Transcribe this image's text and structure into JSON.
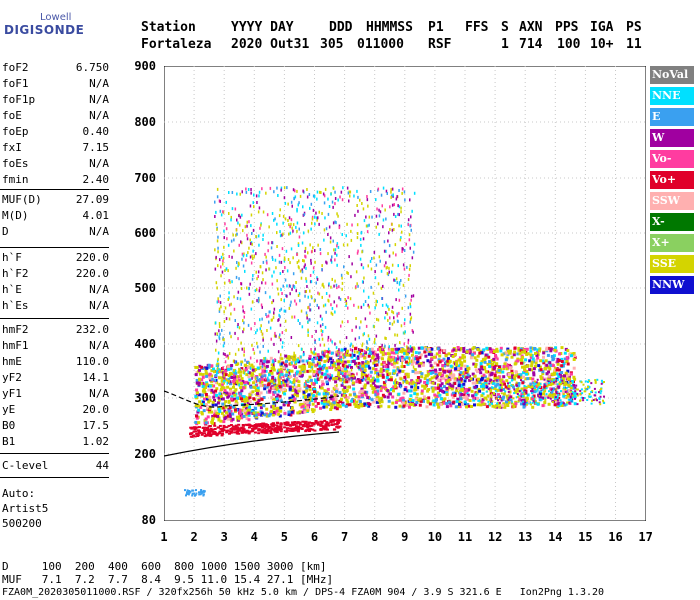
{
  "logo": {
    "top": "Lowell",
    "main": "DIGISONDE"
  },
  "header": {
    "row1": [
      "Station",
      "YYYY DAY",
      "DDD",
      "HHMMSS",
      "P1",
      "FFS",
      "S",
      "AXN",
      "PPS",
      "IGA",
      "PS"
    ],
    "row2": [
      "Fortaleza",
      "2020 Out31",
      "305",
      "011000",
      "RSF",
      "",
      "1",
      "714",
      "100",
      "10+",
      "11"
    ]
  },
  "params": {
    "group1": [
      {
        "label": "foF2",
        "value": "6.750"
      },
      {
        "label": "foF1",
        "value": "N/A"
      },
      {
        "label": "foF1p",
        "value": "N/A"
      },
      {
        "label": "foE",
        "value": "N/A"
      },
      {
        "label": "foEp",
        "value": "0.40"
      },
      {
        "label": "fxI",
        "value": "7.15"
      },
      {
        "label": "foEs",
        "value": "N/A"
      },
      {
        "label": "fmin",
        "value": "2.40"
      }
    ],
    "group2": [
      {
        "label": "MUF(D)",
        "value": "27.09"
      },
      {
        "label": "M(D)",
        "value": "4.01"
      },
      {
        "label": "D",
        "value": "N/A"
      }
    ],
    "group3": [
      {
        "label": "h`F",
        "value": "220.0"
      },
      {
        "label": "h`F2",
        "value": "220.0"
      },
      {
        "label": "h`E",
        "value": "N/A"
      },
      {
        "label": "h`Es",
        "value": "N/A"
      }
    ],
    "group4": [
      {
        "label": "hmF2",
        "value": "232.0"
      },
      {
        "label": "hmF1",
        "value": "N/A"
      },
      {
        "label": "hmE",
        "value": "110.0"
      },
      {
        "label": "yF2",
        "value": "14.1"
      },
      {
        "label": "yF1",
        "value": "N/A"
      },
      {
        "label": "yE",
        "value": "20.0"
      },
      {
        "label": "B0",
        "value": "17.5"
      },
      {
        "label": "B1",
        "value": "1.02"
      }
    ],
    "group5": [
      {
        "label": "C-level",
        "value": "44"
      }
    ],
    "auto": [
      "Auto:",
      "Artist5",
      "500200"
    ]
  },
  "legend": [
    {
      "label": "NoVal",
      "color": "#808080"
    },
    {
      "label": "NNE",
      "color": "#00e0ff"
    },
    {
      "label": "E",
      "color": "#3aa0f0"
    },
    {
      "label": "W",
      "color": "#a000a0"
    },
    {
      "label": "Vo-",
      "color": "#ff3ca0"
    },
    {
      "label": "Vo+",
      "color": "#e0002a"
    },
    {
      "label": "SSW",
      "color": "#ffb0b0"
    },
    {
      "label": "X-",
      "color": "#007800"
    },
    {
      "label": "X+",
      "color": "#8ad060"
    },
    {
      "label": "SSE",
      "color": "#d4d400"
    },
    {
      "label": "NNW",
      "color": "#1010d0"
    }
  ],
  "axes": {
    "y_ticks": [
      "900",
      "800",
      "700",
      "600",
      "500",
      "400",
      "300",
      "200",
      "80"
    ],
    "x_ticks": [
      "1",
      "2",
      "3",
      "4",
      "5",
      "6",
      "7",
      "8",
      "9",
      "10",
      "11",
      "12",
      "13",
      "14",
      "15",
      "16",
      "17"
    ]
  },
  "footer": {
    "d_row": "D     100  200  400  600  800 1000 1500 3000 [km]",
    "muf_row": "MUF   7.1  7.2  7.7  8.4  9.5 11.0 15.4 27.1 [MHz]",
    "info_row": "FZA0M_2020305011000.RSF / 320fx256h 50 kHz 5.0 km / DPS-4 FZA0M 904 / 3.9 S 321.6 E   Ion2Png 1.3.20"
  }
}
